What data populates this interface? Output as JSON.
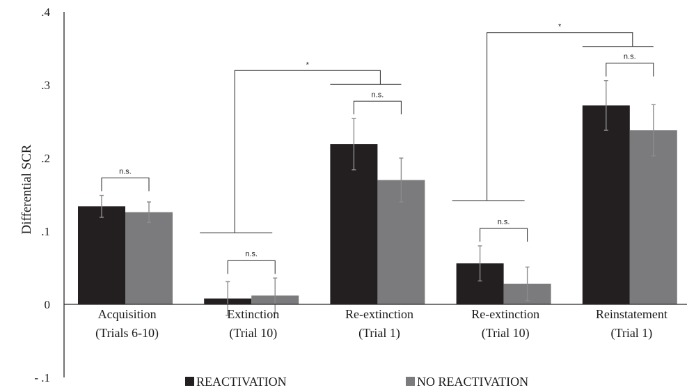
{
  "chart_data": {
    "type": "bar",
    "ylabel": "Differential SCR",
    "ylim": [
      -0.1,
      0.4
    ],
    "yticks": [
      {
        "value": 0.4,
        "label": ".4"
      },
      {
        "value": 0.3,
        "label": ".3"
      },
      {
        "value": 0.2,
        "label": ".2"
      },
      {
        "value": 0.1,
        "label": ".1"
      },
      {
        "value": 0.0,
        "label": "0"
      },
      {
        "value": -0.1,
        "label": "- .1"
      }
    ],
    "categories": [
      [
        "Acquisition",
        "(Trials 6-10)"
      ],
      [
        "Extinction",
        "(Trial 10)"
      ],
      [
        "Re-extinction",
        "(Trial 1)"
      ],
      [
        "Re-extinction",
        "(Trial 10)"
      ],
      [
        "Reinstatement",
        "(Trial 1)"
      ]
    ],
    "series": [
      {
        "name": "REACTIVATION",
        "color": "#231f20",
        "values": [
          0.134,
          0.008,
          0.219,
          0.056,
          0.272
        ],
        "errors": [
          0.015,
          0.023,
          0.035,
          0.024,
          0.034
        ]
      },
      {
        "name": "NO REACTIVATION",
        "color": "#7b7b7d",
        "values": [
          0.126,
          0.012,
          0.17,
          0.028,
          0.238
        ],
        "errors": [
          0.014,
          0.024,
          0.03,
          0.023,
          0.035
        ]
      }
    ],
    "legend": "bottom",
    "within_group_significance": [
      {
        "category": 0,
        "label": "n.s."
      },
      {
        "category": 1,
        "label": "n.s."
      },
      {
        "category": 2,
        "label": "n.s."
      },
      {
        "category": 3,
        "label": "n.s."
      },
      {
        "category": 4,
        "label": "n.s."
      }
    ],
    "between_group_significance": [
      {
        "from": 1,
        "to": 2,
        "label": "*"
      },
      {
        "from": 3,
        "to": 4,
        "label": "*"
      }
    ]
  }
}
